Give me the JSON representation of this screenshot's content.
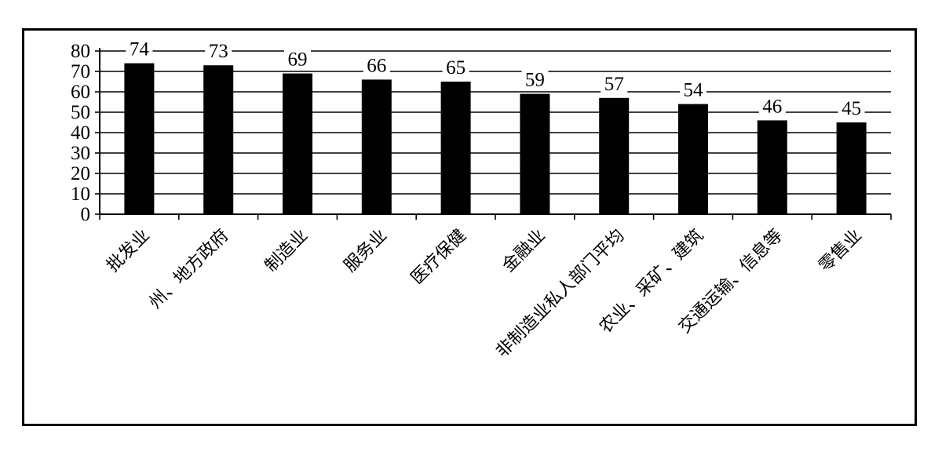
{
  "chart_data": {
    "type": "bar",
    "title": "",
    "xlabel": "",
    "ylabel": "",
    "ylim": [
      0,
      80
    ],
    "yticks": [
      0,
      10,
      20,
      30,
      40,
      50,
      60,
      70,
      80
    ],
    "grid": true,
    "legend": "none",
    "bar_color": "#000000",
    "categories": [
      "批发业",
      "州、地方政府",
      "制造业",
      "服务业",
      "医疗保健",
      "金融业",
      "非制造业私人部门平均",
      "农业、采矿、建筑",
      "交通运输、信息等",
      "零售业"
    ],
    "values": [
      74,
      73,
      69,
      66,
      65,
      59,
      57,
      54,
      46,
      45
    ],
    "data_labels": [
      "74",
      "73",
      "69",
      "66",
      "65",
      "59",
      "57",
      "54",
      "46",
      "45"
    ]
  }
}
